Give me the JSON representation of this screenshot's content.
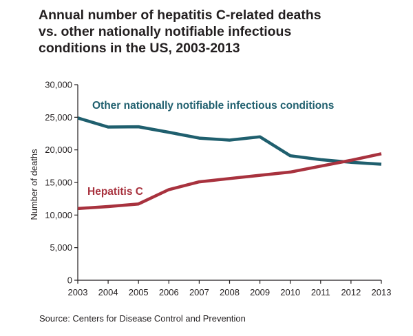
{
  "chart_data": {
    "type": "line",
    "title_lines": [
      "Annual number of hepatitis C-related deaths",
      "vs. other nationally notifiable infectious",
      "conditions in the US, 2003-2013"
    ],
    "xlabel": "",
    "ylabel": "Number of deaths",
    "x": [
      2003,
      2004,
      2005,
      2006,
      2007,
      2008,
      2009,
      2010,
      2011,
      2012,
      2013
    ],
    "x_tick_labels": [
      "2003",
      "2004",
      "2005",
      "2006",
      "2007",
      "2008",
      "2009",
      "2010",
      "2011",
      "2012",
      "2013"
    ],
    "ylim": [
      0,
      30000
    ],
    "y_ticks": [
      0,
      5000,
      10000,
      15000,
      20000,
      25000,
      30000
    ],
    "y_tick_labels": [
      "0",
      "5,000",
      "10,000",
      "15,000",
      "20,000",
      "25,000",
      "30,000"
    ],
    "grid": false,
    "series": [
      {
        "name": "Other nationally notifiable infectious conditions",
        "color": "#1f5f6e",
        "values": [
          24900,
          23500,
          23550,
          22700,
          21800,
          21500,
          22000,
          19100,
          18500,
          18100,
          17800
        ]
      },
      {
        "name": "Hepatitis C",
        "color": "#a8323e",
        "values": [
          11000,
          11300,
          11700,
          13900,
          15100,
          15600,
          16100,
          16600,
          17500,
          18400,
          19400
        ]
      }
    ],
    "source": "Source: Centers for Disease Control and Prevention"
  }
}
